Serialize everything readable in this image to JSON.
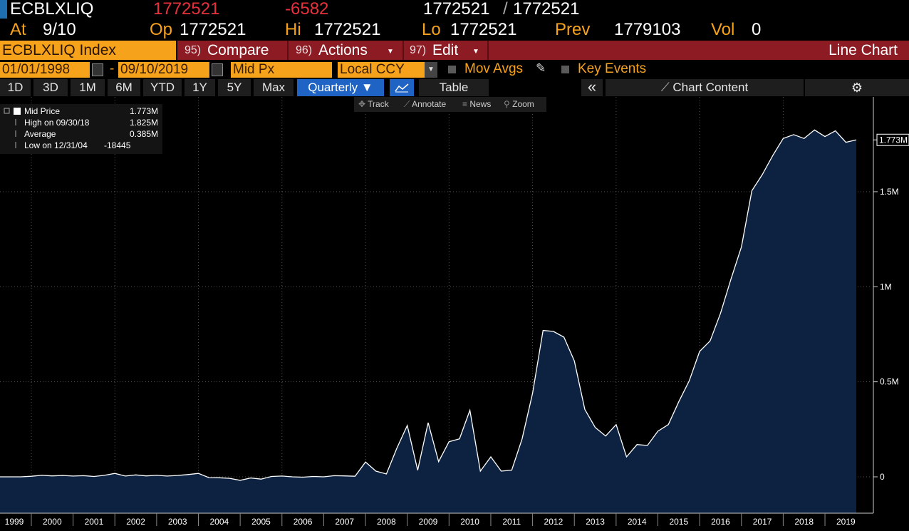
{
  "header": {
    "ticker": "ECBLXLIQ",
    "last": "1772521",
    "change": "-6582",
    "bid": "1772521",
    "separator": "/",
    "ask": "1772521"
  },
  "quote": {
    "at_label": "At",
    "at": "9/10",
    "open_label": "Op",
    "open": "1772521",
    "high_label": "Hi",
    "high": "1772521",
    "low_label": "Lo",
    "low": "1772521",
    "prev_label": "Prev",
    "prev": "1779103",
    "vol_label": "Vol",
    "vol": "0"
  },
  "menu": {
    "security": "ECBLXLIQ Index",
    "compare": {
      "num": "95)",
      "label": "Compare"
    },
    "actions": {
      "num": "96)",
      "label": "Actions"
    },
    "edit": {
      "num": "97)",
      "label": "Edit"
    },
    "chart_type": "Line Chart"
  },
  "settings": {
    "start_date": "01/01/1998",
    "date_sep": "-",
    "end_date": "09/10/2019",
    "price": "Mid Px",
    "currency": "Local CCY",
    "mov_avgs": "Mov Avgs",
    "key_events": "Key Events"
  },
  "periods": [
    "1D",
    "3D",
    "1M",
    "6M",
    "YTD",
    "1Y",
    "5Y",
    "Max"
  ],
  "frequency": "Quarterly",
  "table": "Table",
  "chart_content": "Chart Content",
  "tools": [
    "Track",
    "Annotate",
    "News",
    "Zoom"
  ],
  "chart_data": {
    "type": "area",
    "legend": [
      {
        "label": "Mid Price",
        "value": 1772521,
        "value_label": "1.773M"
      },
      {
        "label": "High on 09/30/18",
        "value": 1825000,
        "value_label": "1.825M"
      },
      {
        "label": "Average",
        "value": 385000,
        "value_label": "0.385M"
      },
      {
        "label": "Low on 12/31/04",
        "value": -18445
      }
    ],
    "x": [
      1999.25,
      1999.5,
      1999.75,
      2000,
      2000.25,
      2000.5,
      2000.75,
      2001,
      2001.25,
      2001.5,
      2001.75,
      2002,
      2002.25,
      2002.5,
      2002.75,
      2003,
      2003.25,
      2003.5,
      2003.75,
      2004,
      2004.25,
      2004.5,
      2004.75,
      2005,
      2005.25,
      2005.5,
      2005.75,
      2006,
      2006.25,
      2006.5,
      2006.75,
      2007,
      2007.25,
      2007.5,
      2007.75,
      2008,
      2008.25,
      2008.5,
      2008.75,
      2009,
      2009.25,
      2009.5,
      2009.75,
      2010,
      2010.25,
      2010.5,
      2010.75,
      2011,
      2011.25,
      2011.5,
      2011.75,
      2012,
      2012.25,
      2012.5,
      2012.75,
      2013,
      2013.25,
      2013.5,
      2013.75,
      2014,
      2014.25,
      2014.5,
      2014.75,
      2015,
      2015.25,
      2015.5,
      2015.75,
      2016,
      2016.25,
      2016.5,
      2016.75,
      2017,
      2017.25,
      2017.5,
      2017.75,
      2018,
      2018.25,
      2018.5,
      2018.75,
      2019,
      2019.25,
      2019.5,
      2019.75
    ],
    "series": [
      {
        "name": "Mid Price",
        "color": "#ffffff",
        "fill": "#0c2240",
        "values": [
          0,
          0,
          0,
          3000,
          8000,
          5000,
          7000,
          4000,
          6000,
          2000,
          8000,
          18000,
          4000,
          10000,
          5000,
          8000,
          4000,
          7000,
          12000,
          18000,
          -4000,
          -5000,
          -8000,
          -18445,
          -6000,
          -12000,
          2000,
          4000,
          0,
          -2000,
          2000,
          0,
          6000,
          5000,
          3000,
          78000,
          30000,
          15000,
          150000,
          270000,
          35000,
          285000,
          80000,
          185000,
          200000,
          350000,
          30000,
          105000,
          30000,
          35000,
          200000,
          440000,
          770000,
          765000,
          735000,
          610000,
          355000,
          260000,
          215000,
          275000,
          105000,
          170000,
          165000,
          240000,
          275000,
          395000,
          505000,
          660000,
          715000,
          860000,
          1040000,
          1210000,
          1505000,
          1590000,
          1690000,
          1780000,
          1800000,
          1780000,
          1825000,
          1790000,
          1820000,
          1760000,
          1772521
        ]
      }
    ],
    "last_value_label": "1.773M",
    "xlim": [
      1999.25,
      2020.125
    ],
    "xticks": [
      1999,
      2000,
      2001,
      2002,
      2003,
      2004,
      2005,
      2006,
      2007,
      2008,
      2009,
      2010,
      2011,
      2012,
      2013,
      2014,
      2015,
      2016,
      2017,
      2018,
      2019
    ],
    "ylim": [
      -191200,
      1998500
    ],
    "yticks": [
      0,
      {
        "value": 500000,
        "label": "0.5M"
      },
      {
        "value": 1000000,
        "label": "1M"
      },
      {
        "value": 1500000,
        "label": "1.5M"
      }
    ],
    "grid": true,
    "y_axis_side": "right"
  }
}
